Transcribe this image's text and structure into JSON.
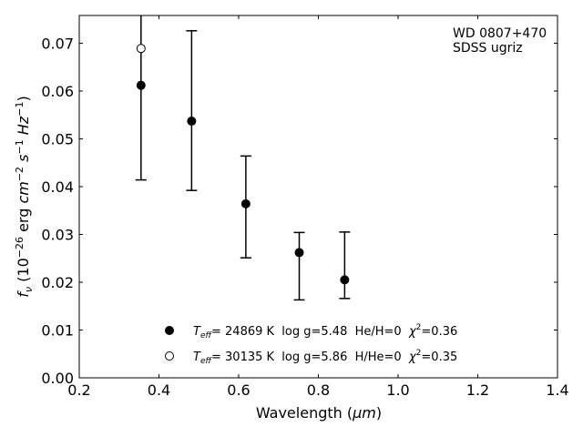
{
  "chart_data": {
    "type": "scatter",
    "title": "",
    "xlabel_main": "Wavelength (",
    "xlabel_unit": "μm",
    "xlabel_end": ")",
    "ylabel_parts": [
      "f",
      "ν",
      " (10",
      "−26",
      " erg ",
      "cm",
      "−2",
      " ",
      "s",
      "−1",
      " ",
      "Hz",
      "−1",
      ")"
    ],
    "xlim": [
      0.2,
      1.4
    ],
    "ylim": [
      0.0,
      0.0758
    ],
    "xticks": [
      0.2,
      0.4,
      0.6,
      0.8,
      1.0,
      1.2,
      1.4
    ],
    "xtick_labels": [
      "0.2",
      "0.4",
      "0.6",
      "0.8",
      "1.0",
      "1.2",
      "1.4"
    ],
    "yticks": [
      0.0,
      0.01,
      0.02,
      0.03,
      0.04,
      0.05,
      0.06,
      0.07
    ],
    "ytick_labels": [
      "0.00",
      "0.01",
      "0.02",
      "0.03",
      "0.04",
      "0.05",
      "0.06",
      "0.07"
    ],
    "annotation": [
      "WD 0807+470",
      "SDSS ugriz"
    ],
    "observed": [
      {
        "x": 0.355,
        "ylo": 0.0414,
        "yhi": 0.0758
      },
      {
        "x": 0.482,
        "ylo": 0.0392,
        "yhi": 0.0726
      },
      {
        "x": 0.618,
        "ylo": 0.0251,
        "yhi": 0.0464
      },
      {
        "x": 0.752,
        "ylo": 0.0163,
        "yhi": 0.0304
      },
      {
        "x": 0.866,
        "ylo": 0.0166,
        "yhi": 0.0305
      }
    ],
    "series": [
      {
        "marker": "filled",
        "x": [
          0.355,
          0.482,
          0.618,
          0.752,
          0.866
        ],
        "y": [
          0.0612,
          0.0537,
          0.0364,
          0.0262,
          0.0205
        ],
        "legend": {
          "t": "T",
          "sub": "eff",
          "rest": "= 24869 K  log g=5.48  He/H=0  ",
          "chi": "χ",
          "chisup": "2",
          "chival": "=0.36"
        }
      },
      {
        "marker": "open",
        "x": [
          0.355
        ],
        "y": [
          0.0689
        ],
        "legend": {
          "t": "T",
          "sub": "eff",
          "rest": "= 30135 K  log g=5.86  H/He=0  ",
          "chi": "χ",
          "chisup": "2",
          "chival": "=0.35"
        }
      }
    ],
    "colors": {
      "marker": "#000000",
      "open_fill": "#ffffff"
    }
  }
}
